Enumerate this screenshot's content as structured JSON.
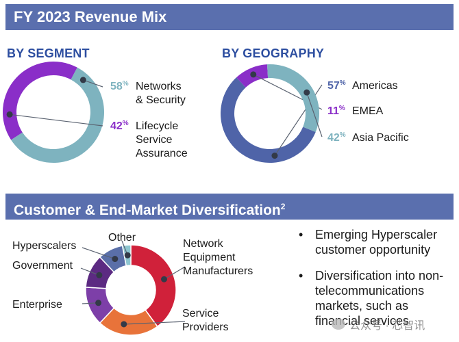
{
  "banner_title": "FY 2023 Revenue Mix",
  "section2_title": "Customer & End-Market Diversification",
  "section2_superscript": "2",
  "colors": {
    "banner_bg": "#5a6fae",
    "heading": "#2d4ea0",
    "teal": "#7eb3bf",
    "purple": "#8a2ec8",
    "navy": "#4f64a8",
    "red": "#d0213a",
    "orange": "#e8733a",
    "violet": "#7d3fa8",
    "dark_purple": "#5c2a82",
    "slate": "#5a6fa8",
    "light_teal": "#8ec6d0"
  },
  "chart_data": [
    {
      "type": "pie",
      "variant": "donut",
      "title": "BY SEGMENT",
      "slices": [
        {
          "label": "Networks & Security",
          "label_lines": [
            "Networks",
            "& Security"
          ],
          "value": 58,
          "pct_text": "58",
          "color": "#7eb3bf"
        },
        {
          "label": "Lifecycle Service Assurance",
          "label_lines": [
            "Lifecycle",
            "Service",
            "Assurance"
          ],
          "value": 42,
          "pct_text": "42",
          "color": "#8a2ec8"
        }
      ]
    },
    {
      "type": "pie",
      "variant": "donut",
      "title": "BY GEOGRAPHY",
      "slices": [
        {
          "label": "Americas",
          "value": 57,
          "pct_text": "57",
          "color": "#4f64a8"
        },
        {
          "label": "EMEA",
          "value": 11,
          "pct_text": "11",
          "color": "#8a2ec8"
        },
        {
          "label": "Asia Pacific",
          "value": 32,
          "pct_text": "42",
          "color": "#7eb3bf"
        }
      ]
    },
    {
      "type": "pie",
      "variant": "donut",
      "title": "Customer & End-Market Diversification",
      "slices": [
        {
          "label": "Network Equipment Manufacturers",
          "label_lines": [
            "Network",
            "Equipment",
            "Manufacturers"
          ],
          "value": 40,
          "color": "#d0213a"
        },
        {
          "label": "Service Providers",
          "label_lines": [
            "Service",
            "Providers"
          ],
          "value": 22,
          "color": "#e8733a"
        },
        {
          "label": "Enterprise",
          "value": 14,
          "color": "#7d3fa8"
        },
        {
          "label": "Government",
          "value": 12,
          "color": "#5c2a82"
        },
        {
          "label": "Hyperscalers",
          "value": 9,
          "color": "#5a6fa8"
        },
        {
          "label": "Other",
          "value": 3,
          "color": "#8ec6d0"
        }
      ]
    }
  ],
  "bullets": [
    {
      "text": "Emerging Hyperscaler customer opportunity"
    },
    {
      "text": "Diversification into non-telecommunications markets, such as financial services"
    }
  ],
  "bullet_symbol": "•",
  "percent_sign": "%",
  "watermark": "公众号 · 芯智讯"
}
